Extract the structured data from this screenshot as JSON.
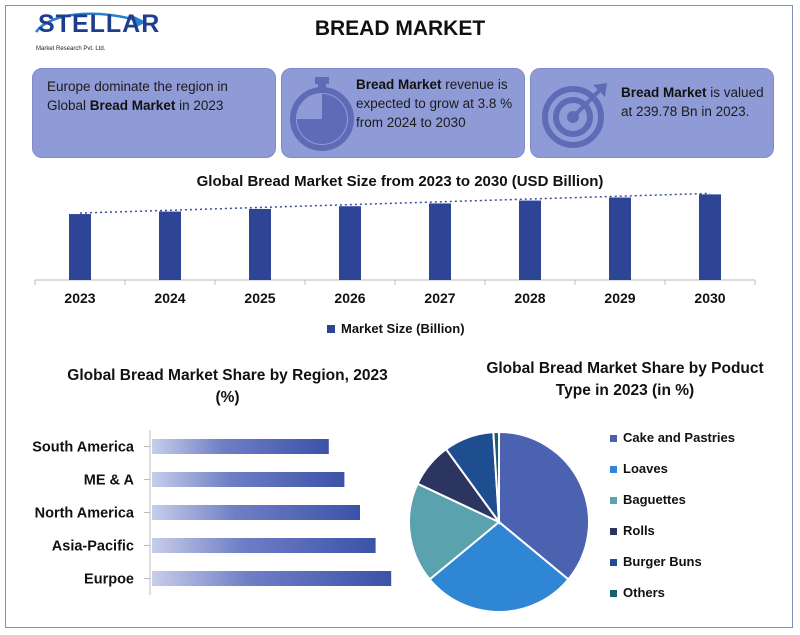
{
  "header": {
    "logo_word": "STELLAR",
    "logo_sub": "Market Research Pvt. Ltd.",
    "title": "BREAD MARKET"
  },
  "cards": [
    {
      "pre": "Europe dominate the region in Global ",
      "bold": "Bread Market",
      "post": " in 2023",
      "icon": "none"
    },
    {
      "pre": "",
      "bold": "Bread Market",
      "post": " revenue is expected to grow at 3.8 % from 2024 to 2030",
      "icon": "stopwatch-icon"
    },
    {
      "pre": "",
      "bold": "Bread Market",
      "post": " is valued at 239.78 Bn in 2023.",
      "icon": "target-icon"
    }
  ],
  "chart_data": [
    {
      "type": "bar",
      "title": "Global Bread Market Size from 2023 to 2030 (USD Billion)",
      "categories": [
        "2023",
        "2024",
        "2025",
        "2026",
        "2027",
        "2028",
        "2029",
        "2030"
      ],
      "series": [
        {
          "name": "Market Size (Billion)",
          "values": [
            239.78,
            248.9,
            258.4,
            268.2,
            278.4,
            288.9,
            299.9,
            311.3
          ]
        }
      ],
      "trendline": "dotted-linear",
      "ylim": [
        0,
        320
      ],
      "legend": "bottom",
      "grid": false,
      "bar_color": "#2e4595"
    },
    {
      "type": "bar",
      "orientation": "horizontal",
      "title": "Global Bread Market Share by Region, 2023 (%)",
      "categories": [
        "South America",
        "ME & A",
        "North America",
        "Asia-Pacific",
        "Eurpoe"
      ],
      "values": [
        17,
        18.5,
        20,
        21.5,
        23
      ],
      "xlim": [
        0,
        25
      ],
      "bar_color": "#3c52a8"
    },
    {
      "type": "pie",
      "title": "Global Bread Market Share by Poduct Type in 2023 (in %)",
      "labels": [
        "Cake and Pastries",
        "Loaves",
        "Baguettes",
        "Rolls",
        "Burger Buns",
        "Others"
      ],
      "values": [
        36,
        28,
        18,
        8,
        9,
        1
      ],
      "colors": [
        "#4a62b0",
        "#2e86d4",
        "#5aa2ad",
        "#2c3560",
        "#1e4e8f",
        "#1b5e6e"
      ],
      "legend": "right"
    }
  ]
}
